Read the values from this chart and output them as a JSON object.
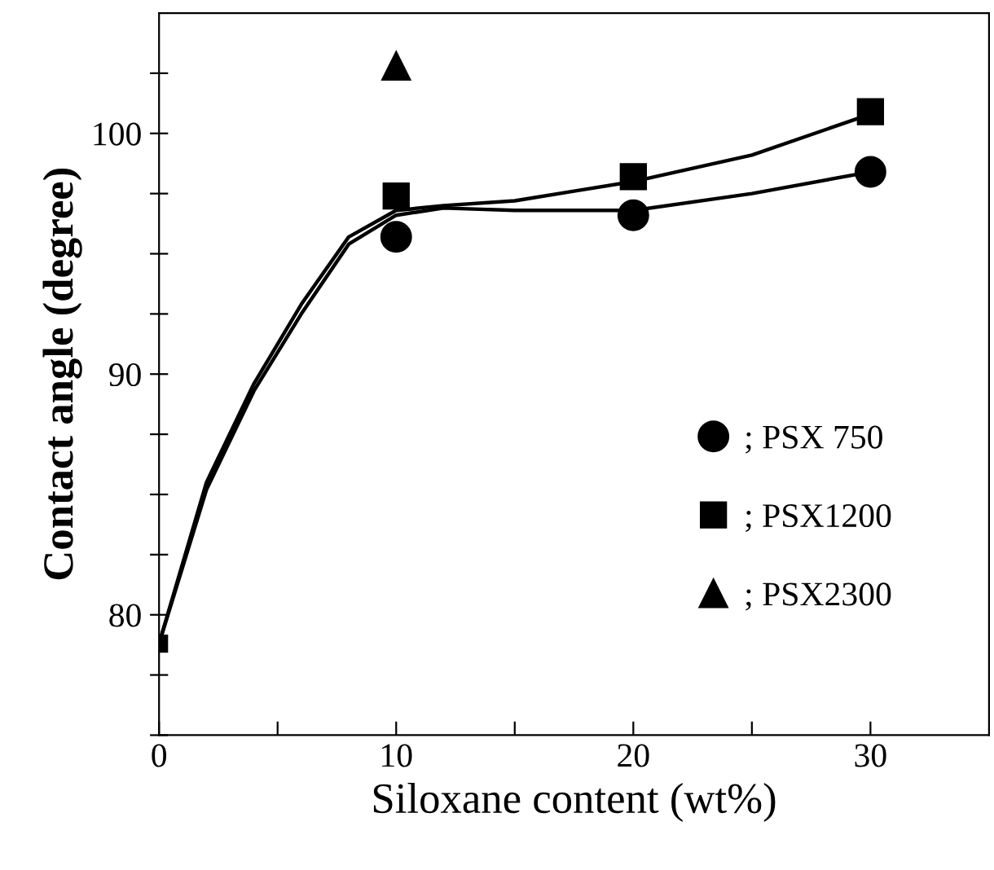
{
  "chart_data": {
    "type": "scatter",
    "xlabel": "Siloxane content (wt%)",
    "ylabel": "Contact angle (degree)",
    "xlim": [
      0,
      35
    ],
    "ylim": [
      75,
      105
    ],
    "xticks": [
      0,
      {
        "value": 5,
        "label": null
      },
      10,
      {
        "value": 15,
        "label": null
      },
      20,
      {
        "value": 25,
        "label": null
      },
      30
    ],
    "yticks": [
      {
        "value": 75,
        "label": null
      },
      {
        "value": 77.5,
        "label": null
      },
      80,
      {
        "value": 82.5,
        "label": null
      },
      {
        "value": 85,
        "label": null
      },
      {
        "value": 87.5,
        "label": null
      },
      90,
      {
        "value": 92.5,
        "label": null
      },
      {
        "value": 95,
        "label": null
      },
      {
        "value": 97.5,
        "label": null
      },
      100,
      {
        "value": 102.5,
        "label": null
      }
    ],
    "grid": false,
    "legend": "right",
    "series": [
      {
        "type": "line",
        "color": "#000000",
        "marker": "none",
        "x": [
          0,
          2,
          4,
          6,
          8,
          10,
          12,
          15,
          20,
          25,
          30
        ],
        "values": [
          78.8,
          85.2,
          89.3,
          92.5,
          95.4,
          96.6,
          96.9,
          96.8,
          96.8,
          97.5,
          98.4
        ]
      },
      {
        "type": "line",
        "color": "#000000",
        "marker": "none",
        "x": [
          0,
          2,
          4,
          6,
          8,
          10,
          12,
          15,
          17.5,
          20,
          25,
          30
        ],
        "values": [
          78.8,
          85.5,
          89.6,
          92.9,
          95.7,
          96.8,
          97.0,
          97.2,
          97.6,
          98.0,
          99.1,
          100.8
        ]
      },
      {
        "color": "#000000",
        "marker": "square",
        "x": [
          0
        ],
        "values": [
          78.8
        ]
      },
      {
        "name": "; PSX 750",
        "color": "#000000",
        "marker": "circle",
        "x": [
          10,
          20,
          30
        ],
        "values": [
          95.7,
          96.6,
          98.4
        ]
      },
      {
        "name": "; PSX1200",
        "color": "#000000",
        "marker": "square",
        "x": [
          10,
          20,
          30
        ],
        "values": [
          97.4,
          98.2,
          100.9
        ]
      },
      {
        "name": "; PSX2300",
        "color": "#000000",
        "marker": "triangle",
        "x": [
          10
        ],
        "values": [
          102.8
        ]
      }
    ]
  }
}
